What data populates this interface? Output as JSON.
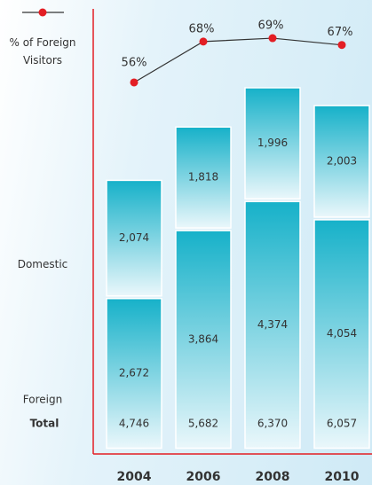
{
  "chart_data": {
    "type": "stacked_bar_line",
    "categories": [
      "2004",
      "2006",
      "2008",
      "2010"
    ],
    "series": [
      {
        "name": "Foreign",
        "color": "#16b1c9",
        "values": [
          2672,
          3864,
          4374,
          4054
        ],
        "value_labels": [
          "2,672",
          "3,864",
          "4,374",
          "4,054"
        ]
      },
      {
        "name": "Domestic",
        "color": "#16b1c9",
        "values": [
          2074,
          1818,
          1996,
          2003
        ],
        "value_labels": [
          "2,074",
          "1,818",
          "1,996",
          "2,003"
        ]
      },
      {
        "name": "% of Foreign Visitors",
        "color": "#e31e24",
        "axis": "y2",
        "values": [
          56,
          68,
          69,
          67
        ],
        "value_labels": [
          "56%",
          "68%",
          "69%",
          "67%"
        ]
      }
    ],
    "total_label": "Total",
    "totals": [
      {
        "value": 4746,
        "label": "4,746"
      },
      {
        "value": 5682,
        "label": "5,682"
      },
      {
        "value": 6370,
        "label": "6,370"
      },
      {
        "value": 6057,
        "label": "6,057"
      }
    ],
    "ylim": [
      0,
      7000
    ],
    "y2lim": [
      50,
      75
    ],
    "axis_color": "#e31e24",
    "line_color": "#333333"
  }
}
